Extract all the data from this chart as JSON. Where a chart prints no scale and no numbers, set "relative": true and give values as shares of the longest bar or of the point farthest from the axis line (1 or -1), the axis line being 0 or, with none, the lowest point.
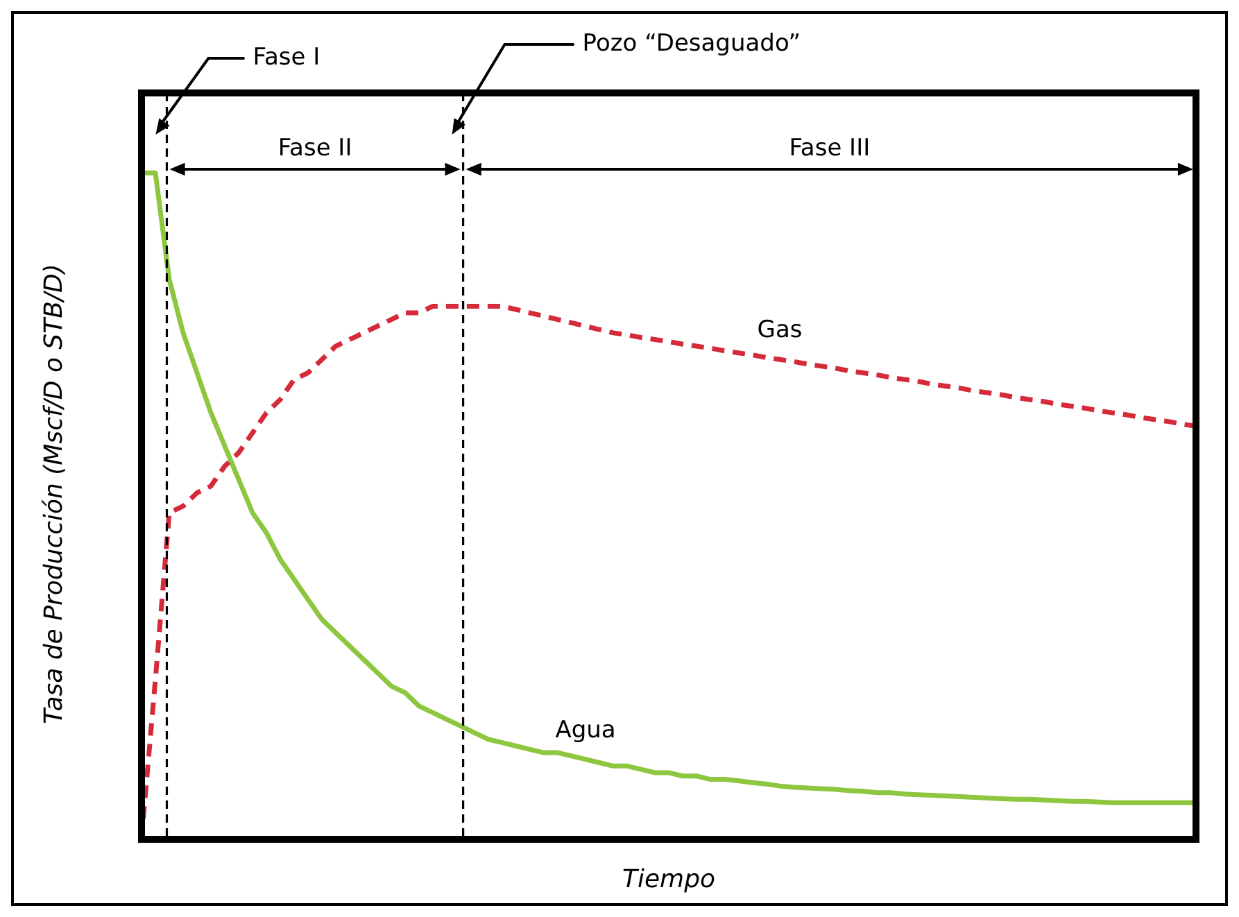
{
  "chart_data": {
    "type": "line",
    "relative": true,
    "xlabel": "Tiempo",
    "ylabel": "Tasa de Producción (Mscf/D o STB/D)",
    "categories": [
      null,
      null,
      null,
      null,
      null,
      null,
      null,
      null,
      null,
      null,
      null,
      null,
      null,
      null,
      null,
      null,
      null,
      null,
      null,
      null,
      null,
      null,
      null,
      null,
      null,
      null,
      null,
      null,
      null,
      null,
      null,
      null,
      null,
      null,
      null,
      null,
      null,
      null,
      null,
      null,
      null,
      null,
      null,
      null,
      null,
      null,
      null,
      null,
      null,
      null,
      null,
      null,
      null,
      null,
      null,
      null,
      null,
      null,
      null,
      null,
      null,
      null,
      null,
      null,
      null,
      null,
      null,
      null,
      null,
      null,
      null,
      null,
      null,
      null,
      null,
      null,
      null
    ],
    "series": [
      {
        "name": "Gas",
        "color": "#d42a3a",
        "line_style": "dashed",
        "values": [
          0,
          0.24,
          0.49,
          0.5,
          0.52,
          0.53,
          0.56,
          0.58,
          0.61,
          0.64,
          0.66,
          0.69,
          0.7,
          0.72,
          0.74,
          0.75,
          0.76,
          0.77,
          0.78,
          0.79,
          0.79,
          0.8,
          0.8,
          0.8,
          0.8,
          0.8,
          0.8,
          0.795,
          0.79,
          0.785,
          0.78,
          0.775,
          0.77,
          0.765,
          0.76,
          0.757,
          0.753,
          0.75,
          0.747,
          0.743,
          0.74,
          0.737,
          0.733,
          0.73,
          0.727,
          0.723,
          0.72,
          0.717,
          0.713,
          0.71,
          0.707,
          0.703,
          0.7,
          0.697,
          0.693,
          0.69,
          0.687,
          0.683,
          0.68,
          0.677,
          0.673,
          0.67,
          0.667,
          0.663,
          0.66,
          0.657,
          0.653,
          0.65,
          0.647,
          0.643,
          0.64,
          0.637,
          0.633,
          0.63,
          0.627,
          0.623,
          0.62
        ]
      },
      {
        "name": "Agua",
        "color": "#8dc63f",
        "line_style": "solid",
        "values": [
          1,
          1,
          0.84,
          0.76,
          0.7,
          0.64,
          0.59,
          0.54,
          0.49,
          0.46,
          0.42,
          0.39,
          0.36,
          0.33,
          0.31,
          0.29,
          0.27,
          0.25,
          0.23,
          0.22,
          0.2,
          0.19,
          0.18,
          0.17,
          0.16,
          0.15,
          0.145,
          0.14,
          0.135,
          0.13,
          0.13,
          0.125,
          0.12,
          0.115,
          0.11,
          0.11,
          0.105,
          0.1,
          0.1,
          0.095,
          0.095,
          0.09,
          0.09,
          0.088,
          0.085,
          0.083,
          0.08,
          0.078,
          0.077,
          0.076,
          0.075,
          0.073,
          0.072,
          0.07,
          0.07,
          0.068,
          0.067,
          0.066,
          0.065,
          0.064,
          0.063,
          0.062,
          0.061,
          0.06,
          0.06,
          0.059,
          0.058,
          0.057,
          0.057,
          0.056,
          0.055,
          0.055,
          0.055,
          0.055,
          0.055,
          0.055,
          0.055
        ]
      }
    ],
    "annotations": [
      "Fase I",
      "Pozo “Desaguado”",
      "Fase II",
      "Fase III"
    ],
    "legend": false,
    "marker": "none"
  }
}
